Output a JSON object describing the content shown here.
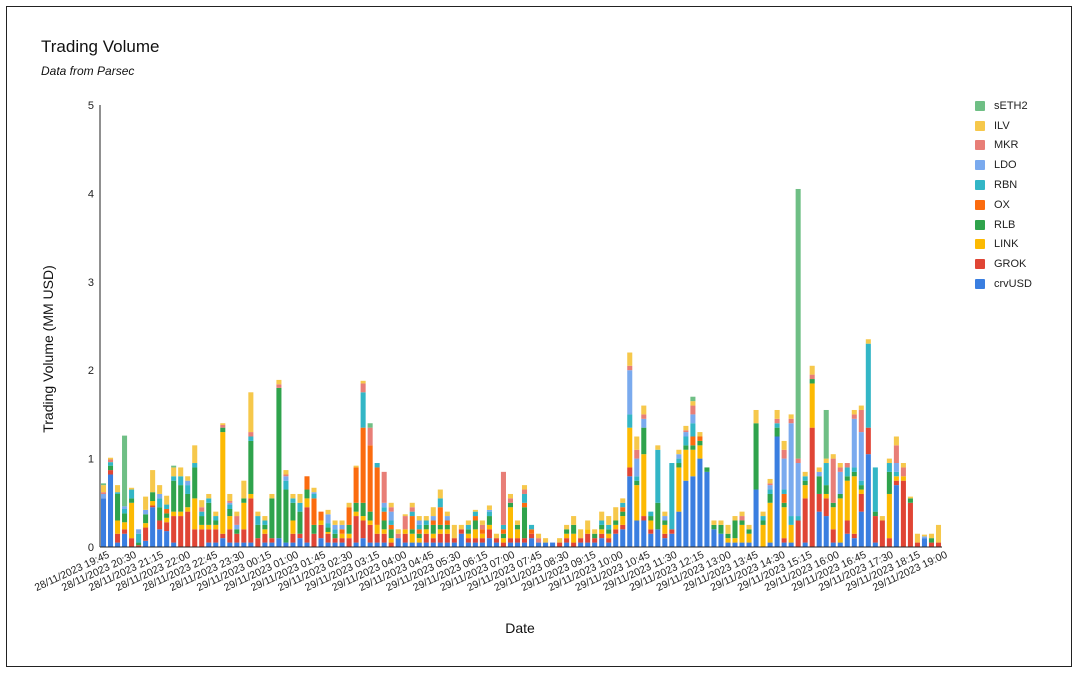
{
  "chart_data": {
    "type": "bar",
    "stacked": true,
    "title": "Trading Volume",
    "subtitle": "Data from Parsec",
    "xlabel": "Date",
    "ylabel": "Trading Volume (MM USD)",
    "ylim": [
      0,
      5
    ],
    "yticks": [
      0,
      1,
      2,
      3,
      4,
      5
    ],
    "grid": false,
    "legend_position": "right",
    "x_tick_labels": [
      "28/11/2023 19:45",
      "28/11/2023 20:30",
      "28/11/2023 21:15",
      "28/11/2023 22:00",
      "28/11/2023 22:45",
      "28/11/2023 23:30",
      "29/11/2023 00:15",
      "29/11/2023 01:00",
      "29/11/2023 01:45",
      "29/11/2023 02:30",
      "29/11/2023 03:15",
      "29/11/2023 04:00",
      "29/11/2023 04:45",
      "29/11/2023 05:30",
      "29/11/2023 06:15",
      "29/11/2023 07:00",
      "29/11/2023 07:45",
      "29/11/2023 08:30",
      "29/11/2023 09:15",
      "29/11/2023 10:00",
      "29/11/2023 10:45",
      "29/11/2023 11:30",
      "29/11/2023 12:15",
      "29/11/2023 13:00",
      "29/11/2023 13:45",
      "29/11/2023 14:30",
      "29/11/2023 15:15",
      "29/11/2023 16:00",
      "29/11/2023 16:45",
      "29/11/2023 17:30",
      "29/11/2023 18:15",
      "29/11/2023 19:00"
    ],
    "series_names": [
      "crvUSD",
      "GROK",
      "LINK",
      "RLB",
      "OX",
      "RBN",
      "LDO",
      "MKR",
      "ILV",
      "sETH2"
    ],
    "series_colors": [
      "#3a7ee0",
      "#e04535",
      "#fcba03",
      "#2fa34c",
      "#fb6b0f",
      "#33b6c6",
      "#7aaaee",
      "#e87e77",
      "#f6c84b",
      "#6fbf85"
    ],
    "bars": [
      [
        0.55,
        0,
        0,
        0,
        0,
        0,
        0.05,
        0.02,
        0.08,
        0.02
      ],
      [
        0.82,
        0.05,
        0,
        0.05,
        0,
        0.04,
        0,
        0.03,
        0.02,
        0
      ],
      [
        0.05,
        0.1,
        0.15,
        0.3,
        0,
        0.02,
        0,
        0,
        0.08,
        0
      ],
      [
        0.15,
        0.05,
        0.08,
        0.1,
        0,
        0.05,
        0.03,
        0,
        0,
        0.8
      ],
      [
        0,
        0.1,
        0.4,
        0.05,
        0,
        0.1,
        0,
        0,
        0.02,
        0
      ],
      [
        0,
        0.02,
        0,
        0.03,
        0,
        0.1,
        0.05,
        0,
        0,
        0
      ],
      [
        0.07,
        0.15,
        0.05,
        0.1,
        0,
        0,
        0.05,
        0,
        0.15,
        0
      ],
      [
        0.45,
        0.02,
        0.05,
        0.1,
        0,
        0,
        0,
        0,
        0.25,
        0
      ],
      [
        0.2,
        0.1,
        0,
        0.15,
        0,
        0.1,
        0.05,
        0,
        0.1,
        0
      ],
      [
        0.18,
        0.1,
        0.05,
        0.05,
        0.05,
        0.05,
        0,
        0,
        0.1,
        0
      ],
      [
        0.05,
        0.3,
        0.05,
        0.35,
        0,
        0.05,
        0,
        0,
        0.1,
        0.02
      ],
      [
        0,
        0.35,
        0.05,
        0.3,
        0,
        0.1,
        0,
        0,
        0.1,
        0
      ],
      [
        0,
        0.4,
        0.05,
        0.15,
        0,
        0.1,
        0.05,
        0,
        0.05,
        0
      ],
      [
        0,
        0.2,
        0.35,
        0.35,
        0,
        0.05,
        0,
        0,
        0.2,
        0
      ],
      [
        0,
        0.2,
        0.05,
        0.1,
        0,
        0.05,
        0,
        0.05,
        0.08,
        0
      ],
      [
        0.05,
        0.15,
        0.05,
        0.25,
        0,
        0.05,
        0,
        0,
        0.05,
        0
      ],
      [
        0.05,
        0.15,
        0.05,
        0.05,
        0,
        0.05,
        0,
        0,
        0.05,
        0
      ],
      [
        0.1,
        0.05,
        1.15,
        0.05,
        0,
        0,
        0,
        0.03,
        0.02,
        0
      ],
      [
        0.05,
        0.15,
        0.15,
        0.08,
        0,
        0.05,
        0.02,
        0.02,
        0.08,
        0
      ],
      [
        0.05,
        0.1,
        0,
        0.05,
        0,
        0,
        0.05,
        0.1,
        0.05,
        0
      ],
      [
        0.05,
        0.15,
        0.3,
        0.05,
        0,
        0,
        0,
        0,
        0.2,
        0
      ],
      [
        0.05,
        0.5,
        0.05,
        0.6,
        0,
        0.05,
        0,
        0.05,
        0.45,
        0
      ],
      [
        0,
        0.1,
        0,
        0.15,
        0,
        0.1,
        0,
        0,
        0.05,
        0
      ],
      [
        0.05,
        0.1,
        0.05,
        0.05,
        0,
        0.05,
        0,
        0,
        0.05,
        0
      ],
      [
        0.05,
        0.05,
        0,
        0.45,
        0,
        0,
        0,
        0,
        0.05,
        0
      ],
      [
        0.1,
        0,
        0,
        1.7,
        0,
        0,
        0,
        0.04,
        0.05,
        0
      ],
      [
        0.05,
        0,
        0,
        0.6,
        0,
        0.1,
        0.05,
        0.02,
        0.05,
        0
      ],
      [
        0.05,
        0.1,
        0.15,
        0.2,
        0,
        0.05,
        0,
        0,
        0.05,
        0
      ],
      [
        0.1,
        0.05,
        0,
        0.25,
        0,
        0.1,
        0,
        0,
        0.1,
        0
      ],
      [
        0.05,
        0.4,
        0.1,
        0.1,
        0.15,
        0,
        0,
        0,
        0,
        0
      ],
      [
        0,
        0.15,
        0,
        0.1,
        0.3,
        0.05,
        0.02,
        0,
        0.05,
        0
      ],
      [
        0.1,
        0.15,
        0.05,
        0,
        0.1,
        0,
        0,
        0,
        0,
        0
      ],
      [
        0.05,
        0.1,
        0.02,
        0.05,
        0,
        0.05,
        0.1,
        0,
        0.05,
        0
      ],
      [
        0.05,
        0.05,
        0,
        0.05,
        0,
        0.05,
        0.05,
        0,
        0.05,
        0
      ],
      [
        0.05,
        0.05,
        0.05,
        0,
        0.05,
        0,
        0.05,
        0,
        0.05,
        0
      ],
      [
        0,
        0.1,
        0.05,
        0.1,
        0.2,
        0,
        0,
        0,
        0.05,
        0
      ],
      [
        0.05,
        0.3,
        0.05,
        0.1,
        0.4,
        0,
        0,
        0,
        0.02,
        0
      ],
      [
        0.1,
        0.2,
        0.05,
        0.15,
        0.85,
        0.4,
        0,
        0.1,
        0.03,
        0
      ],
      [
        0.05,
        0.2,
        0.05,
        0.1,
        0.75,
        0,
        0,
        0.2,
        0,
        0.05
      ],
      [
        0.05,
        0.1,
        0.1,
        0,
        0.65,
        0.05,
        0,
        0,
        0,
        0
      ],
      [
        0.05,
        0.1,
        0.05,
        0.1,
        0.1,
        0.05,
        0.05,
        0.35,
        0,
        0
      ],
      [
        0,
        0.05,
        0.05,
        0.1,
        0.05,
        0.05,
        0.1,
        0.05,
        0.05,
        0
      ],
      [
        0.1,
        0,
        0,
        0,
        0,
        0,
        0,
        0.05,
        0.05,
        0
      ],
      [
        0.05,
        0.1,
        0.05,
        0,
        0,
        0,
        0,
        0.15,
        0.02,
        0
      ],
      [
        0.05,
        0,
        0.1,
        0.05,
        0.15,
        0.05,
        0,
        0.05,
        0.05,
        0
      ],
      [
        0.05,
        0,
        0.05,
        0.05,
        0.05,
        0.05,
        0.05,
        0,
        0.05,
        0
      ],
      [
        0.05,
        0.1,
        0.05,
        0.05,
        0,
        0.05,
        0,
        0,
        0.05,
        0
      ],
      [
        0.05,
        0.05,
        0.05,
        0.1,
        0.05,
        0,
        0.05,
        0,
        0.1,
        0
      ],
      [
        0.05,
        0.1,
        0.05,
        0.05,
        0.2,
        0.1,
        0,
        0,
        0.1,
        0
      ],
      [
        0.05,
        0.1,
        0.05,
        0.05,
        0.05,
        0,
        0.05,
        0,
        0.05,
        0
      ],
      [
        0.05,
        0.05,
        0,
        0,
        0,
        0,
        0,
        0,
        0.15,
        0
      ],
      [
        0.15,
        0.05,
        0,
        0,
        0,
        0,
        0,
        0,
        0.05,
        0
      ],
      [
        0.05,
        0.05,
        0.05,
        0.05,
        0,
        0.05,
        0,
        0,
        0.05,
        0
      ],
      [
        0.05,
        0.05,
        0.1,
        0.1,
        0.05,
        0.05,
        0,
        0,
        0.02,
        0
      ],
      [
        0.05,
        0.05,
        0.05,
        0,
        0.05,
        0,
        0,
        0.05,
        0.05,
        0
      ],
      [
        0.1,
        0.1,
        0.05,
        0.1,
        0,
        0.05,
        0.02,
        0,
        0.05,
        0
      ],
      [
        0.05,
        0.05,
        0,
        0,
        0,
        0,
        0,
        0,
        0.05,
        0
      ],
      [
        0,
        0.05,
        0.05,
        0.05,
        0.05,
        0.05,
        0,
        0.6,
        0,
        0
      ],
      [
        0.05,
        0.05,
        0.35,
        0.05,
        0,
        0,
        0,
        0.05,
        0.05,
        0
      ],
      [
        0.05,
        0.05,
        0.1,
        0.05,
        0,
        0,
        0,
        0,
        0.05,
        0
      ],
      [
        0.05,
        0.05,
        0,
        0.35,
        0.05,
        0.1,
        0,
        0.05,
        0.05,
        0
      ],
      [
        0.1,
        0.05,
        0,
        0,
        0.05,
        0.05,
        0,
        0,
        0,
        0
      ],
      [
        0.05,
        0,
        0,
        0,
        0,
        0,
        0,
        0.05,
        0.05,
        0
      ],
      [
        0.05,
        0,
        0,
        0,
        0,
        0,
        0,
        0,
        0.05,
        0
      ],
      [
        0.05,
        0,
        0,
        0,
        0,
        0,
        0,
        0,
        0,
        0
      ],
      [
        0,
        0.05,
        0,
        0,
        0,
        0,
        0,
        0,
        0.05,
        0
      ],
      [
        0.05,
        0.05,
        0.05,
        0.05,
        0,
        0,
        0,
        0,
        0.05,
        0
      ],
      [
        0,
        0.05,
        0.1,
        0.1,
        0,
        0,
        0,
        0,
        0.1,
        0
      ],
      [
        0.05,
        0.05,
        0,
        0,
        0,
        0,
        0,
        0,
        0.1,
        0
      ],
      [
        0.05,
        0.1,
        0.05,
        0,
        0,
        0,
        0,
        0,
        0.1,
        0
      ],
      [
        0.05,
        0.05,
        0,
        0.05,
        0,
        0,
        0,
        0,
        0.05,
        0
      ],
      [
        0.1,
        0.05,
        0.05,
        0.05,
        0,
        0.05,
        0,
        0,
        0.1,
        0
      ],
      [
        0.05,
        0.05,
        0.05,
        0.05,
        0,
        0.05,
        0,
        0,
        0.1,
        0
      ],
      [
        0.15,
        0.05,
        0.05,
        0.05,
        0,
        0,
        0,
        0,
        0.15,
        0
      ],
      [
        0.2,
        0.05,
        0.1,
        0.05,
        0.05,
        0.05,
        0,
        0,
        0.05,
        0
      ],
      [
        0.8,
        0.1,
        0.45,
        0,
        0,
        0.15,
        0.5,
        0.05,
        0.15,
        0
      ],
      [
        0.3,
        0,
        0.4,
        0.05,
        0,
        0.05,
        0.2,
        0.1,
        0.15,
        0
      ],
      [
        0.3,
        0.05,
        0.7,
        0.3,
        0,
        0,
        0.1,
        0.05,
        0.1,
        0
      ],
      [
        0.15,
        0.05,
        0.1,
        0.05,
        0,
        0.05,
        0,
        0,
        0,
        0
      ],
      [
        0.2,
        0,
        0,
        0.3,
        0,
        0.6,
        0,
        0,
        0.05,
        0
      ],
      [
        0.1,
        0.05,
        0.1,
        0.05,
        0,
        0,
        0.05,
        0,
        0.05,
        0
      ],
      [
        0.15,
        0.05,
        0,
        0,
        0,
        0.75,
        0,
        0,
        0,
        0
      ],
      [
        0.4,
        0,
        0.5,
        0.05,
        0,
        0.05,
        0.05,
        0,
        0.05,
        0
      ],
      [
        0.75,
        0,
        0.35,
        0.05,
        0,
        0.1,
        0.05,
        0.02,
        0.05,
        0
      ],
      [
        0.8,
        0,
        0.3,
        0.05,
        0.1,
        0.15,
        0.1,
        0.1,
        0.05,
        0.05
      ],
      [
        1,
        0,
        0.15,
        0.05,
        0.05,
        0,
        0,
        0,
        0.05,
        0
      ],
      [
        0.85,
        0,
        0,
        0.05,
        0,
        0,
        0,
        0,
        0,
        0
      ],
      [
        0.2,
        0,
        0,
        0.05,
        0,
        0,
        0,
        0,
        0.05,
        0
      ],
      [
        0.15,
        0,
        0,
        0.1,
        0,
        0,
        0,
        0,
        0.05,
        0
      ],
      [
        0.05,
        0,
        0.05,
        0.05,
        0,
        0,
        0,
        0,
        0.1,
        0
      ],
      [
        0.05,
        0,
        0.05,
        0.2,
        0,
        0,
        0,
        0,
        0.05,
        0
      ],
      [
        0.05,
        0,
        0.2,
        0.05,
        0,
        0,
        0,
        0.05,
        0.05,
        0
      ],
      [
        0.05,
        0,
        0.1,
        0.05,
        0,
        0,
        0,
        0,
        0.05,
        0
      ],
      [
        0.65,
        0,
        0,
        0.75,
        0,
        0,
        0,
        0,
        0.15,
        0
      ],
      [
        0,
        0,
        0.25,
        0.05,
        0,
        0.05,
        0,
        0,
        0.05,
        0
      ],
      [
        0.05,
        0,
        0.45,
        0.1,
        0,
        0.05,
        0.05,
        0.02,
        0.05,
        0
      ],
      [
        1.25,
        0,
        0,
        0.1,
        0,
        0.05,
        0,
        0.05,
        0.1,
        0
      ],
      [
        0.05,
        0.05,
        0.35,
        0.05,
        0.1,
        0.05,
        0.35,
        0.1,
        0.1,
        0
      ],
      [
        0.05,
        0,
        0.2,
        0,
        0,
        0.1,
        1.05,
        0.05,
        0.05,
        0
      ],
      [
        0,
        0.3,
        0,
        0,
        0,
        0.05,
        0.6,
        0.05,
        0,
        3.05
      ],
      [
        0.05,
        0.5,
        0.15,
        0.05,
        0,
        0.05,
        0,
        0,
        0.05,
        0
      ],
      [
        0,
        1.35,
        0.5,
        0.05,
        0,
        0,
        0,
        0.05,
        0.1,
        0
      ],
      [
        0.4,
        0.2,
        0,
        0.2,
        0,
        0,
        0.05,
        0,
        0.05,
        0
      ],
      [
        0.35,
        0.2,
        0.05,
        0.1,
        0,
        0.25,
        0,
        0,
        0.05,
        0.55
      ],
      [
        0.05,
        0.15,
        0.25,
        0.05,
        0,
        0,
        0,
        0.5,
        0.05,
        0
      ],
      [
        0.05,
        0,
        0.5,
        0.05,
        0,
        0,
        0.25,
        0.05,
        0.05,
        0
      ],
      [
        0.15,
        0.15,
        0.45,
        0.05,
        0,
        0.1,
        0,
        0.05,
        0,
        0
      ],
      [
        0.1,
        0.05,
        0.65,
        0.05,
        0,
        0.05,
        0.55,
        0.05,
        0.05,
        0
      ],
      [
        0.4,
        0.2,
        0.05,
        0.05,
        0,
        0.05,
        0.55,
        0.25,
        0.05,
        0
      ],
      [
        1.05,
        0.3,
        0,
        0,
        0,
        0.95,
        0,
        0,
        0.05,
        0
      ],
      [
        0.05,
        0.3,
        0,
        0.05,
        0,
        0.5,
        0,
        0,
        0,
        0
      ],
      [
        0,
        0.3,
        0,
        0,
        0,
        0,
        0,
        0,
        0.05,
        0
      ],
      [
        0,
        0.1,
        0.5,
        0.25,
        0,
        0.1,
        0,
        0,
        0.05,
        0
      ],
      [
        0.7,
        0.05,
        0.05,
        0,
        0,
        0.05,
        0.1,
        0.2,
        0.1,
        0
      ],
      [
        0,
        0.75,
        0.05,
        0,
        0,
        0,
        0,
        0.1,
        0.05,
        0
      ],
      [
        0,
        0.5,
        0,
        0.05,
        0,
        0,
        0,
        0,
        0.02,
        0
      ],
      [
        0,
        0.05,
        0,
        0,
        0,
        0,
        0,
        0,
        0.1,
        0
      ],
      [
        0.1,
        0,
        0,
        0,
        0,
        0,
        0.02,
        0,
        0.02,
        0
      ],
      [
        0,
        0.05,
        0,
        0.05,
        0,
        0,
        0,
        0,
        0.05,
        0
      ],
      [
        0,
        0.05,
        0,
        0,
        0,
        0,
        0,
        0,
        0.2,
        0
      ]
    ]
  }
}
